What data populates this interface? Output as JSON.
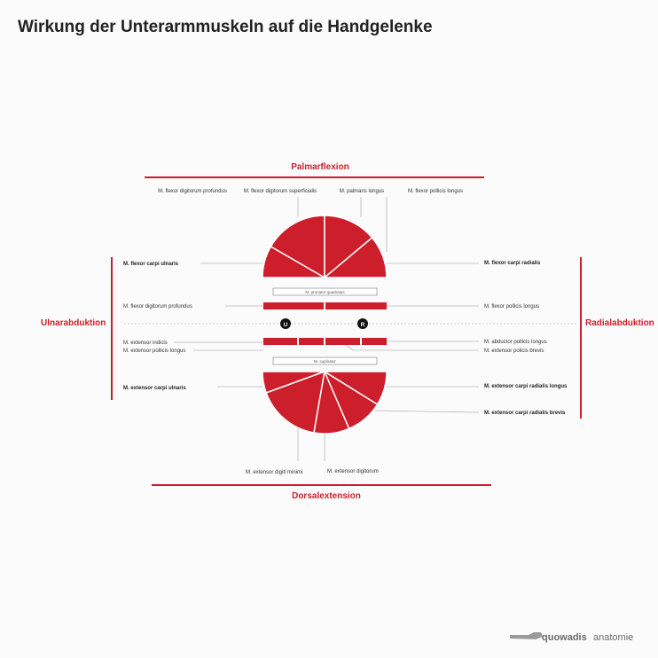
{
  "title": "Wirkung der Unterarmmuskeln auf die Handgelenke",
  "axes": {
    "palmar": "Palmarflexion",
    "dorsal": "Dorsalextension",
    "ulnar": "Ulnarabduktion",
    "radial": "Radialabduktion"
  },
  "top_labels": {
    "fdp": "M. flexor digitorum profundus",
    "fds": "M. flexor digitorum superficialis",
    "pl": "M. palmaris longus",
    "fpl": "M. flexor pollicis longus"
  },
  "left_labels": {
    "fcu": "M. flexor carpi ulnaris",
    "fdp": "M. flexor digitorum profundus",
    "ei": "M. extensor indicis",
    "epl": "M. extensor pollicis longus",
    "ecu": "M. extensor carpi ulnaris"
  },
  "right_labels": {
    "fcr": "M. flexor carpi radialis",
    "fpl": "M. flexor pollicis longus",
    "apl": "M. abductor pollicis longus",
    "epb": "M.  extensor policis brevis",
    "ecrl": "M. extensor carpi radialis longus",
    "ecrb": "M. extensor carpi radialis brevis"
  },
  "bottom_labels": {
    "edm": "M. extensor digiti minimi",
    "ed": "M. extensor digitorum"
  },
  "boxes": {
    "pronator": "M. pronator quadratus",
    "supinator": "M. supinator"
  },
  "markers": {
    "ulna": "U",
    "radius": "R"
  },
  "brand": {
    "name_bold": "quowadis",
    "name_light": "anatomie"
  },
  "colors": {
    "accent": "#cc1e2b",
    "text": "#222222",
    "line": "#b5b5b5"
  }
}
